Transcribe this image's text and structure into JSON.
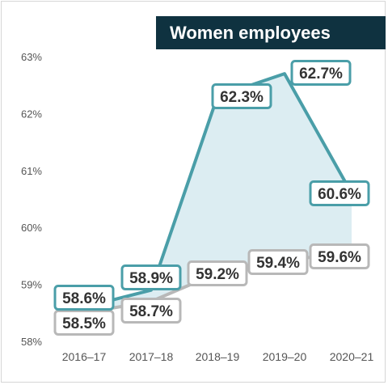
{
  "chart_data": {
    "type": "area",
    "title": "Women employees",
    "xlabel": "",
    "ylabel": "",
    "categories": [
      "2016–17",
      "2017–18",
      "2018–19",
      "2019–20",
      "2020–21"
    ],
    "ylim": [
      58,
      63
    ],
    "yticks": [
      "58%",
      "59%",
      "60%",
      "61%",
      "62%",
      "63%"
    ],
    "grid": false,
    "series": [
      {
        "values": [
          58.6,
          58.9,
          62.3,
          62.7,
          60.6
        ],
        "labels": [
          "58.6%",
          "58.9%",
          "62.3%",
          "62.7%",
          "60.6%"
        ],
        "color": "#4a9ea8",
        "fill": "#dcedf2"
      },
      {
        "values": [
          58.5,
          58.7,
          59.2,
          59.4,
          59.6
        ],
        "labels": [
          "58.5%",
          "58.7%",
          "59.2%",
          "59.4%",
          "59.6%"
        ],
        "color": "#b8b8b8"
      }
    ]
  }
}
